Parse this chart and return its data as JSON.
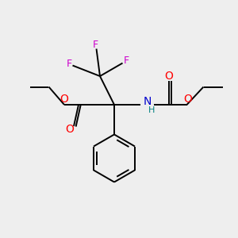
{
  "bg_color": "#eeeeee",
  "bond_color": "#000000",
  "O_color": "#ff0000",
  "N_color": "#0000cc",
  "F_color": "#cc00cc",
  "H_color": "#008080",
  "line_width": 1.4,
  "fig_size": [
    3.0,
    3.0
  ],
  "dpi": 100,
  "xlim": [
    0,
    10
  ],
  "ylim": [
    0,
    10
  ]
}
